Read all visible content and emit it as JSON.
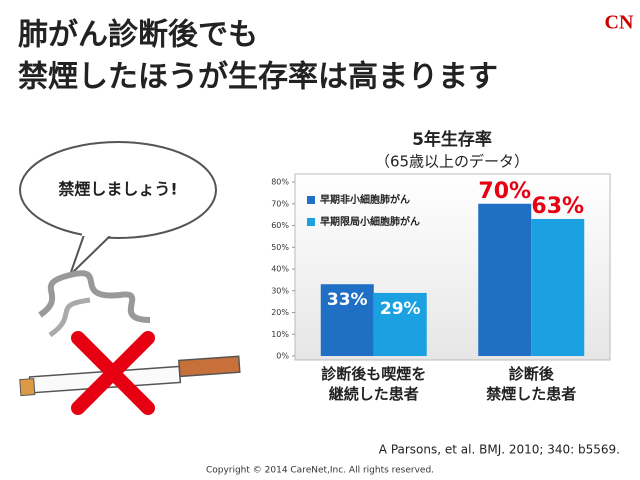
{
  "title_lines": [
    "肺がん診断後でも",
    "禁煙したほうが生存率は高まります"
  ],
  "logo": "CN",
  "speech": "禁煙しましょう!",
  "citation": "A Parsons, et al. BMJ. 2010; 340: b5569.",
  "copyright": "Copyright © 2014 CareNet,Inc. All rights reserved.",
  "chart_data": {
    "type": "bar",
    "title": "5年生存率",
    "subtitle": "（65歳以上のデータ）",
    "categories": [
      "診断後も喫煙を\n継続した患者",
      "診断後\n禁煙した患者"
    ],
    "series": [
      {
        "name": "早期非小細胞肺がん",
        "color": "#1f6fc5",
        "values": [
          33,
          70
        ],
        "value_labels": [
          "33%",
          "70%"
        ]
      },
      {
        "name": "早期限局小細胞肺がん",
        "color": "#1ba1e2",
        "values": [
          29,
          63
        ],
        "value_labels": [
          "29%",
          "63%"
        ]
      }
    ],
    "value_label_colors": [
      "#ffffff",
      "#e60012"
    ],
    "ylim": [
      0,
      80
    ],
    "yticks": [
      {
        "value": 0,
        "label": "0%"
      },
      {
        "value": 10,
        "label": "10%"
      },
      {
        "value": 20,
        "label": "20%"
      },
      {
        "value": 30,
        "label": "30%"
      },
      {
        "value": 40,
        "label": "40%"
      },
      {
        "value": 50,
        "label": "50%"
      },
      {
        "value": 60,
        "label": "60%"
      },
      {
        "value": 70,
        "label": "70%"
      },
      {
        "value": 80,
        "label": "80%"
      }
    ],
    "grid": false,
    "legend": "upper-left"
  }
}
